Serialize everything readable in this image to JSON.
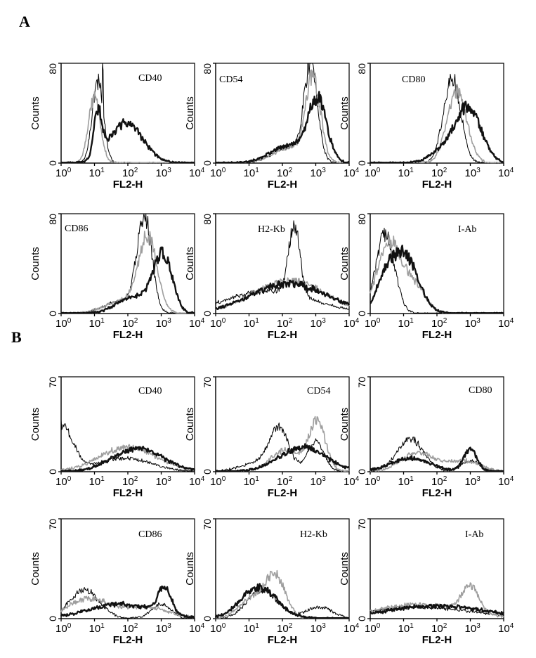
{
  "panels": [
    {
      "label": "A"
    },
    {
      "label": "B"
    }
  ],
  "chart_data": [
    {
      "panel": "A",
      "type": "line",
      "marker": "CD40",
      "xlabel": "FL2-H",
      "ylabel": "Counts",
      "xscale": "log",
      "xlim": [
        1,
        10000
      ],
      "ylim": [
        0,
        80
      ],
      "yticks": [
        0,
        80
      ],
      "xticks": [
        "0",
        "1",
        "2",
        "3",
        "4"
      ],
      "series": [
        {
          "color": "#000000",
          "stroke": 1.0,
          "peaks": [
            [
              1.1,
              0.17,
              65
            ]
          ],
          "spikes": [
            [
              1.25,
              77
            ]
          ]
        },
        {
          "color": "#9e9e9e",
          "stroke": 1.6,
          "peaks": [
            [
              1.0,
              0.18,
              52
            ]
          ]
        },
        {
          "color": "#111111",
          "stroke": 2.4,
          "peaks": [
            [
              1.1,
              0.12,
              36
            ],
            [
              1.95,
              0.5,
              32
            ]
          ]
        }
      ]
    },
    {
      "panel": "A",
      "type": "line",
      "marker": "CD54",
      "xlabel": "FL2-H",
      "ylabel": "Counts",
      "xscale": "log",
      "xlim": [
        1,
        10000
      ],
      "ylim": [
        0,
        80
      ],
      "yticks": [
        0,
        80
      ],
      "xticks": [
        "0",
        "1",
        "2",
        "3",
        "4"
      ],
      "series": [
        {
          "color": "#000000",
          "stroke": 1.0,
          "peaks": [
            [
              2.85,
              0.2,
              75
            ],
            [
              2.2,
              0.5,
              12
            ]
          ]
        },
        {
          "color": "#9e9e9e",
          "stroke": 1.6,
          "peaks": [
            [
              2.92,
              0.22,
              66
            ],
            [
              2.2,
              0.5,
              12
            ]
          ]
        },
        {
          "color": "#111111",
          "stroke": 2.4,
          "peaks": [
            [
              3.05,
              0.28,
              48
            ],
            [
              2.2,
              0.55,
              14
            ]
          ]
        }
      ]
    },
    {
      "panel": "A",
      "type": "line",
      "marker": "CD80",
      "xlabel": "FL2-H",
      "ylabel": "Counts",
      "xscale": "log",
      "xlim": [
        1,
        10000
      ],
      "ylim": [
        0,
        80
      ],
      "yticks": [
        0,
        80
      ],
      "xticks": [
        "0",
        "1",
        "2",
        "3",
        "4"
      ],
      "series": [
        {
          "color": "#000000",
          "stroke": 1.0,
          "peaks": [
            [
              2.45,
              0.26,
              68
            ]
          ]
        },
        {
          "color": "#9e9e9e",
          "stroke": 1.6,
          "peaks": [
            [
              2.6,
              0.3,
              56
            ]
          ]
        },
        {
          "color": "#111111",
          "stroke": 2.4,
          "peaks": [
            [
              2.95,
              0.38,
              44
            ],
            [
              2.2,
              0.4,
              10
            ]
          ]
        }
      ]
    },
    {
      "panel": "A",
      "type": "line",
      "marker": "CD86",
      "xlabel": "FL2-H",
      "ylabel": "Counts",
      "xscale": "log",
      "xlim": [
        1,
        10000
      ],
      "ylim": [
        0,
        80
      ],
      "yticks": [
        0,
        80
      ],
      "xticks": [
        "0",
        "1",
        "2",
        "3",
        "4"
      ],
      "series": [
        {
          "color": "#000000",
          "stroke": 1.0,
          "peaks": [
            [
              2.5,
              0.22,
              76
            ],
            [
              1.8,
              0.5,
              10
            ]
          ]
        },
        {
          "color": "#9e9e9e",
          "stroke": 1.6,
          "peaks": [
            [
              2.6,
              0.28,
              60
            ],
            [
              1.8,
              0.5,
              10
            ]
          ]
        },
        {
          "color": "#111111",
          "stroke": 2.4,
          "peaks": [
            [
              3.05,
              0.28,
              46
            ],
            [
              2.2,
              0.5,
              14
            ]
          ]
        }
      ]
    },
    {
      "panel": "A",
      "type": "line",
      "marker": "H2-Kb",
      "xlabel": "FL2-H",
      "ylabel": "Counts",
      "xscale": "log",
      "xlim": [
        1,
        10000
      ],
      "ylim": [
        0,
        80
      ],
      "yticks": [
        0,
        80
      ],
      "xticks": [
        "0",
        "1",
        "2",
        "3",
        "4"
      ],
      "series": [
        {
          "color": "#000000",
          "stroke": 1.0,
          "peaks": [
            [
              2.35,
              0.17,
              56
            ],
            [
              1.6,
              1.3,
              18
            ]
          ]
        },
        {
          "color": "#9e9e9e",
          "stroke": 1.6,
          "peaks": [
            [
              2.2,
              1.1,
              26
            ]
          ]
        },
        {
          "color": "#111111",
          "stroke": 2.4,
          "peaks": [
            [
              2.2,
              1.15,
              24
            ]
          ]
        }
      ]
    },
    {
      "panel": "A",
      "type": "line",
      "marker": "I-Ab",
      "xlabel": "FL2-H",
      "ylabel": "Counts",
      "xscale": "log",
      "xlim": [
        1,
        10000
      ],
      "ylim": [
        0,
        80
      ],
      "yticks": [
        0,
        80
      ],
      "xticks": [
        "0",
        "1",
        "2",
        "3",
        "4"
      ],
      "series": [
        {
          "color": "#000000",
          "stroke": 1.0,
          "peaks": [
            [
              0.45,
              0.28,
              64
            ]
          ]
        },
        {
          "color": "#9e9e9e",
          "stroke": 1.6,
          "peaks": [
            [
              0.55,
              0.35,
              56
            ],
            [
              1.3,
              0.35,
              22
            ]
          ]
        },
        {
          "color": "#111111",
          "stroke": 2.4,
          "peaks": [
            [
              1.0,
              0.42,
              48
            ],
            [
              0.4,
              0.25,
              18
            ]
          ]
        }
      ]
    },
    {
      "panel": "B",
      "type": "line",
      "marker": "CD40",
      "xlabel": "FL2-H",
      "ylabel": "Counts",
      "xscale": "log",
      "xlim": [
        1,
        10000
      ],
      "ylim": [
        0,
        70
      ],
      "yticks": [
        0,
        70
      ],
      "xticks": [
        "0",
        "1",
        "2",
        "3",
        "4"
      ],
      "series": [
        {
          "color": "#000000",
          "stroke": 1.0,
          "peaks": [
            [
              0.0,
              0.35,
              34
            ],
            [
              1.9,
              0.8,
              10
            ]
          ]
        },
        {
          "color": "#9e9e9e",
          "stroke": 1.6,
          "peaks": [
            [
              2.0,
              0.85,
              18
            ]
          ]
        },
        {
          "color": "#111111",
          "stroke": 2.4,
          "peaks": [
            [
              2.3,
              0.75,
              17
            ]
          ]
        }
      ]
    },
    {
      "panel": "B",
      "type": "line",
      "marker": "CD54",
      "xlabel": "FL2-H",
      "ylabel": "Counts",
      "xscale": "log",
      "xlim": [
        1,
        10000
      ],
      "ylim": [
        0,
        70
      ],
      "yticks": [
        0,
        70
      ],
      "xticks": [
        "0",
        "1",
        "2",
        "3",
        "4"
      ],
      "series": [
        {
          "color": "#000000",
          "stroke": 1.0,
          "peaks": [
            [
              1.9,
              0.3,
              30
            ],
            [
              3.0,
              0.25,
              22
            ],
            [
              1.2,
              0.5,
              6
            ]
          ]
        },
        {
          "color": "#9e9e9e",
          "stroke": 1.6,
          "peaks": [
            [
              3.05,
              0.25,
              36
            ],
            [
              2.1,
              0.45,
              16
            ]
          ]
        },
        {
          "color": "#111111",
          "stroke": 2.4,
          "peaks": [
            [
              2.6,
              0.7,
              18
            ]
          ]
        }
      ]
    },
    {
      "panel": "B",
      "type": "line",
      "marker": "CD80",
      "xlabel": "FL2-H",
      "ylabel": "Counts",
      "xscale": "log",
      "xlim": [
        1,
        10000
      ],
      "ylim": [
        0,
        70
      ],
      "yticks": [
        0,
        70
      ],
      "xticks": [
        "0",
        "1",
        "2",
        "3",
        "4"
      ],
      "series": [
        {
          "color": "#000000",
          "stroke": 1.0,
          "peaks": [
            [
              1.2,
              0.4,
              24
            ],
            [
              3.0,
              0.3,
              8
            ]
          ]
        },
        {
          "color": "#9e9e9e",
          "stroke": 1.6,
          "peaks": [
            [
              1.4,
              0.5,
              14
            ],
            [
              2.8,
              0.5,
              8
            ]
          ]
        },
        {
          "color": "#111111",
          "stroke": 2.4,
          "peaks": [
            [
              3.0,
              0.2,
              17
            ],
            [
              1.2,
              0.6,
              10
            ]
          ]
        }
      ]
    },
    {
      "panel": "B",
      "type": "line",
      "marker": "CD86",
      "xlabel": "FL2-H",
      "ylabel": "Counts",
      "xscale": "log",
      "xlim": [
        1,
        10000
      ],
      "ylim": [
        0,
        70
      ],
      "yticks": [
        0,
        70
      ],
      "xticks": [
        "0",
        "1",
        "2",
        "3",
        "4"
      ],
      "series": [
        {
          "color": "#000000",
          "stroke": 1.0,
          "peaks": [
            [
              0.7,
              0.45,
              20
            ],
            [
              3.0,
              0.3,
              10
            ]
          ]
        },
        {
          "color": "#9e9e9e",
          "stroke": 1.6,
          "peaks": [
            [
              0.8,
              0.6,
              14
            ],
            [
              2.5,
              0.7,
              8
            ]
          ]
        },
        {
          "color": "#111111",
          "stroke": 2.4,
          "peaks": [
            [
              3.1,
              0.2,
              18
            ],
            [
              1.8,
              1.0,
              10
            ]
          ]
        }
      ]
    },
    {
      "panel": "B",
      "type": "line",
      "marker": "H2-Kb",
      "xlabel": "FL2-H",
      "ylabel": "Counts",
      "xscale": "log",
      "xlim": [
        1,
        10000
      ],
      "ylim": [
        0,
        70
      ],
      "yticks": [
        0,
        70
      ],
      "xticks": [
        "0",
        "1",
        "2",
        "3",
        "4"
      ],
      "series": [
        {
          "color": "#000000",
          "stroke": 1.0,
          "peaks": [
            [
              1.4,
              0.45,
              20
            ],
            [
              3.1,
              0.4,
              8
            ]
          ]
        },
        {
          "color": "#9e9e9e",
          "stroke": 1.6,
          "peaks": [
            [
              1.8,
              0.3,
              28
            ],
            [
              1.1,
              0.4,
              14
            ]
          ]
        },
        {
          "color": "#111111",
          "stroke": 2.4,
          "peaks": [
            [
              1.3,
              0.55,
              22
            ]
          ]
        }
      ]
    },
    {
      "panel": "B",
      "type": "line",
      "marker": "I-Ab",
      "xlabel": "FL2-H",
      "ylabel": "Counts",
      "xscale": "log",
      "xlim": [
        1,
        10000
      ],
      "ylim": [
        0,
        70
      ],
      "yticks": [
        0,
        70
      ],
      "xticks": [
        "0",
        "1",
        "2",
        "3",
        "4"
      ],
      "series": [
        {
          "color": "#000000",
          "stroke": 1.0,
          "peaks": [
            [
              1.5,
              1.6,
              8
            ]
          ]
        },
        {
          "color": "#9e9e9e",
          "stroke": 1.6,
          "peaks": [
            [
              3.0,
              0.25,
              18
            ],
            [
              1.5,
              1.3,
              10
            ]
          ]
        },
        {
          "color": "#111111",
          "stroke": 2.4,
          "peaks": [
            [
              2.0,
              1.5,
              9
            ]
          ]
        }
      ]
    }
  ]
}
